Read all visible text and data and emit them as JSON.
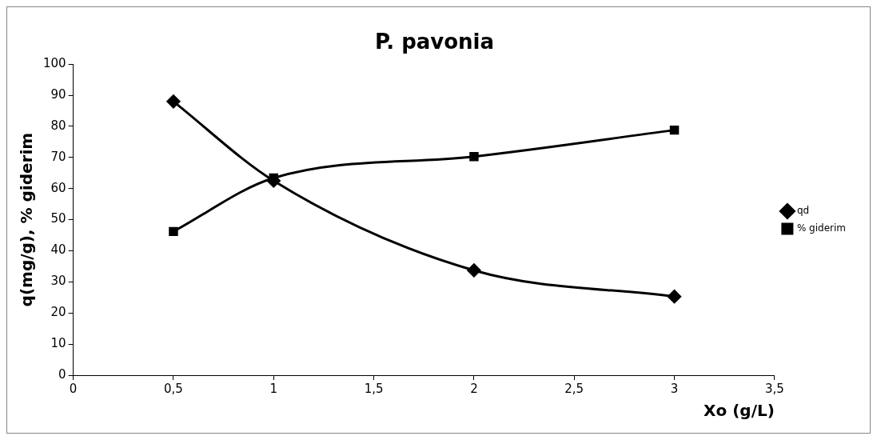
{
  "chart_data": {
    "type": "line",
    "title": "P. pavonia",
    "xlabel": "Xo (g/L)",
    "ylabel": "q(mg/g), % giderim",
    "x": [
      0.5,
      1,
      2,
      3
    ],
    "series": [
      {
        "name": "qd",
        "color": "#000000",
        "marker": "diamond",
        "values": [
          88,
          62.5,
          33.7,
          25.3
        ]
      },
      {
        "name": "% giderim",
        "color": "#000000",
        "marker": "square",
        "values": [
          46.2,
          63.4,
          70.3,
          78.8
        ]
      }
    ],
    "xlim": [
      0,
      3.5
    ],
    "xticks": [
      {
        "value": 0,
        "label": "0"
      },
      {
        "value": 0.5,
        "label": "0,5"
      },
      {
        "value": 1,
        "label": "1"
      },
      {
        "value": 1.5,
        "label": "1,5"
      },
      {
        "value": 2,
        "label": "2"
      },
      {
        "value": 2.5,
        "label": "2,5"
      },
      {
        "value": 3,
        "label": "3"
      },
      {
        "value": 3.5,
        "label": "3,5"
      }
    ],
    "ylim": [
      0,
      100
    ],
    "yticks": [
      0,
      10,
      20,
      30,
      40,
      50,
      60,
      70,
      80,
      90,
      100
    ],
    "grid": false,
    "legend": "right"
  }
}
